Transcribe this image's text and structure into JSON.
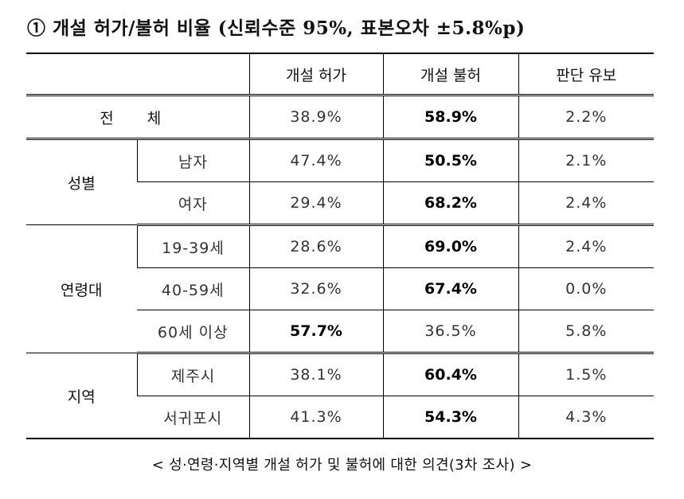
{
  "title": "① 개설 허가/불허 비율 (신뢰수준 95%, 표본오차 ±5.8%p)",
  "headers": [
    "개설 허가",
    "개설 불허",
    "판단 유보"
  ],
  "total": {
    "label": "전 체",
    "values": [
      "38.9%",
      "58.9%",
      "2.2%"
    ]
  },
  "gender": {
    "label": "성별",
    "rows": [
      {
        "label": "남자",
        "values": [
          "47.4%",
          "50.5%",
          "2.1%"
        ]
      },
      {
        "label": "여자",
        "values": [
          "29.4%",
          "68.2%",
          "2.4%"
        ]
      }
    ]
  },
  "age": {
    "label": "연령대",
    "rows": [
      {
        "label": "19-39세",
        "values": [
          "28.6%",
          "69.0%",
          "2.4%"
        ]
      },
      {
        "label": "40-59세",
        "values": [
          "32.6%",
          "67.4%",
          "0.0%"
        ]
      },
      {
        "label": "60세 이상",
        "values": [
          "57.7%",
          "36.5%",
          "5.8%"
        ]
      }
    ]
  },
  "region": {
    "label": "지역",
    "rows": [
      {
        "label": "제주시",
        "values": [
          "38.1%",
          "60.4%",
          "1.5%"
        ]
      },
      {
        "label": "서귀포시",
        "values": [
          "41.3%",
          "54.3%",
          "4.3%"
        ]
      }
    ]
  },
  "caption": "< 성·연령·지역별 개설 허가 및 불허에 대한 의견(3차 조사) >"
}
